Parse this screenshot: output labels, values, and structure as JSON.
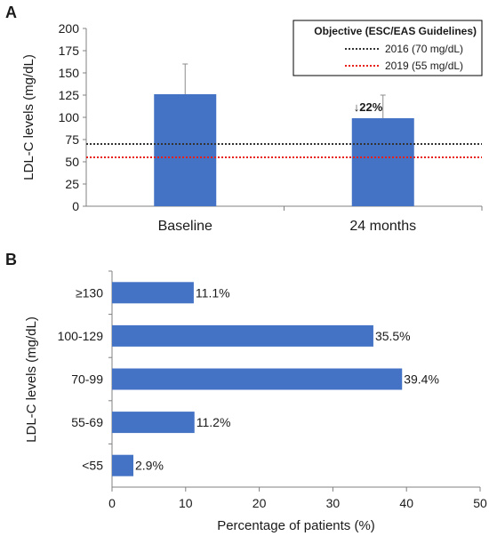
{
  "panel_a_label": "A",
  "panel_b_label": "B",
  "chart_data": [
    {
      "type": "bar",
      "panel": "A",
      "categories": [
        "Baseline",
        "24 months"
      ],
      "values": [
        126,
        99
      ],
      "error_upper": [
        160,
        125
      ],
      "ylabel": "LDL-C levels (mg/dL)",
      "ylim": [
        0,
        200
      ],
      "yticks": [
        0,
        25,
        50,
        75,
        100,
        125,
        150,
        175,
        200
      ],
      "bar_color": "#4472C4",
      "grid": false,
      "reduction_annotation": "↓22%",
      "reference_lines": [
        {
          "label": "2016 (70 mg/dL)",
          "value": 70,
          "color": "#333333",
          "style": "dotted"
        },
        {
          "label": "2019 (55 mg/dL)",
          "value": 55,
          "color": "#e8201c",
          "style": "dotted"
        }
      ],
      "legend_title": "Objective (ESC/EAS Guidelines)",
      "legend_position": "top-right"
    },
    {
      "type": "bar",
      "orientation": "horizontal",
      "panel": "B",
      "categories": [
        "≥130",
        "100-129",
        "70-99",
        "55-69",
        "<55"
      ],
      "values": [
        11.1,
        35.5,
        39.4,
        11.2,
        2.9
      ],
      "value_labels": [
        "11.1%",
        "35.5%",
        "39.4%",
        "11.2%",
        "2.9%"
      ],
      "xlabel": "Percentage of patients (%)",
      "ylabel": "LDL-C levels (mg/dL)",
      "xlim": [
        0,
        50
      ],
      "xticks": [
        0,
        10,
        20,
        30,
        40,
        50
      ],
      "bar_color": "#4472C4",
      "grid": false
    }
  ]
}
